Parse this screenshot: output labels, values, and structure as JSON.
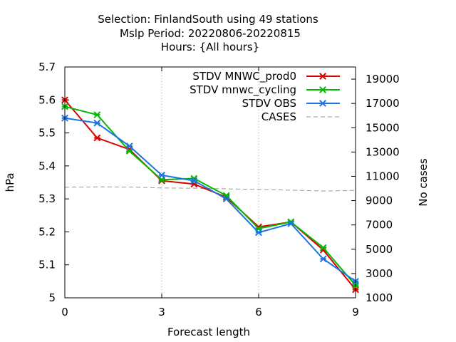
{
  "chart_data": {
    "type": "line",
    "title_lines": [
      "Selection: FinlandSouth using    49 stations",
      "Mslp   Period: 20220806-20220815",
      "Hours: {All hours}"
    ],
    "xlabel": "Forecast length",
    "ylabel": "hPa",
    "y2label": "No cases",
    "xlim": [
      0,
      9
    ],
    "ylim": [
      5.0,
      5.7
    ],
    "y2lim": [
      1000,
      20000
    ],
    "xticks": [
      0,
      3,
      6,
      9
    ],
    "yticks": [
      5.0,
      5.1,
      5.2,
      5.3,
      5.4,
      5.5,
      5.6,
      5.7
    ],
    "ytick_labels": [
      "5",
      "5.1",
      "5.2",
      "5.3",
      "5.4",
      "5.5",
      "5.6",
      "5.7"
    ],
    "y2ticks": [
      1000,
      3000,
      5000,
      7000,
      9000,
      11000,
      13000,
      15000,
      17000,
      19000
    ],
    "grid": "x only, dotted",
    "legend_position": "top-right",
    "x": [
      0,
      1,
      2,
      3,
      4,
      5,
      6,
      7,
      8,
      9
    ],
    "series": [
      {
        "name": "STDV MNWC_prod0",
        "color": "#dd0000",
        "axis": "left",
        "values": [
          5.6,
          5.485,
          5.45,
          5.355,
          5.345,
          5.305,
          5.215,
          5.23,
          5.145,
          5.025
        ]
      },
      {
        "name": "STDV mnwc_cycling",
        "color": "#00bb00",
        "axis": "left",
        "values": [
          5.58,
          5.555,
          5.445,
          5.358,
          5.362,
          5.31,
          5.21,
          5.23,
          5.152,
          5.038
        ]
      },
      {
        "name": "STDV OBS",
        "color": "#1e74e0",
        "axis": "left",
        "values": [
          5.545,
          5.53,
          5.46,
          5.372,
          5.355,
          5.3,
          5.198,
          5.225,
          5.118,
          5.05
        ]
      },
      {
        "name": "CASES",
        "color": "#999999",
        "axis": "right",
        "dashed": true,
        "values": [
          10100,
          10130,
          10120,
          10040,
          10020,
          9970,
          9920,
          9860,
          9790,
          9840
        ]
      }
    ]
  }
}
